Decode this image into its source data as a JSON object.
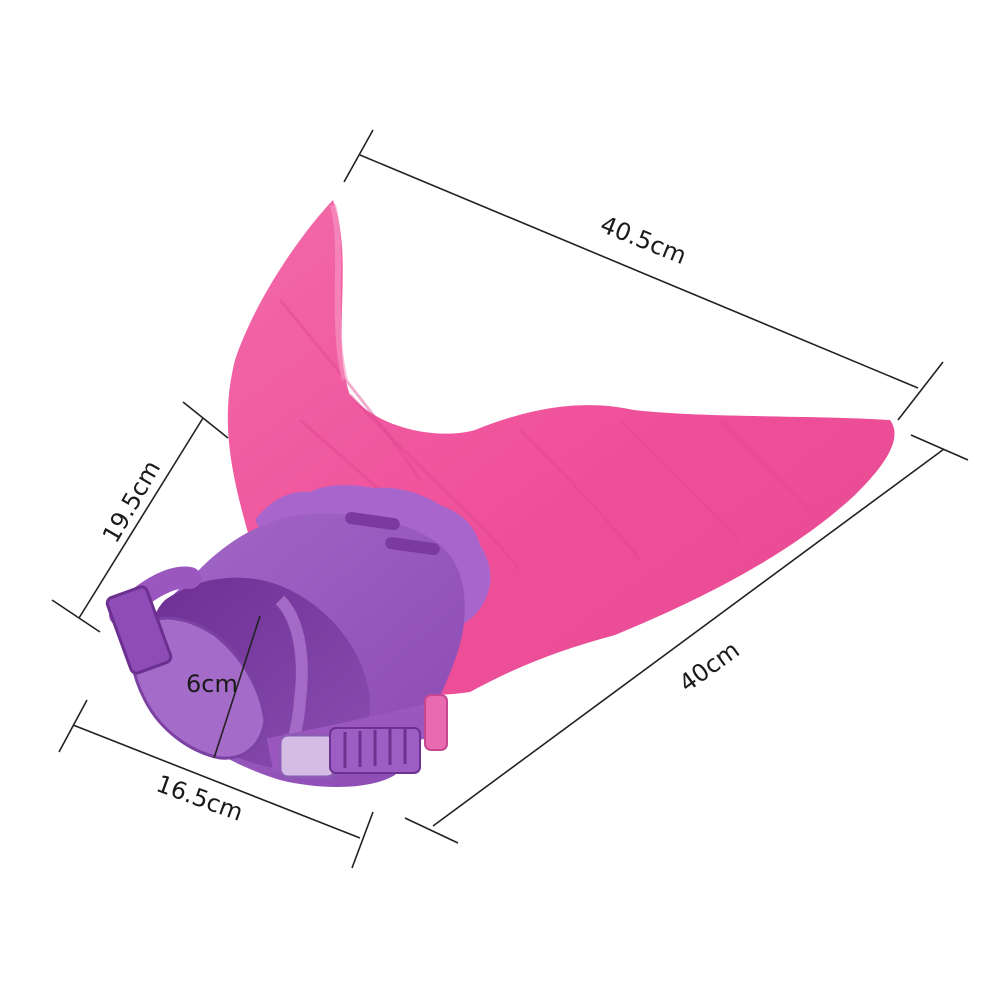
{
  "image": {
    "subject": "mermaid-fin",
    "background": "#ffffff",
    "colors": {
      "fin": "#f0519b",
      "fin_shadow": "#d93f86",
      "fin_highlight": "#f878b5",
      "foot_pocket": "#9c5bc1",
      "foot_pocket_dark": "#7b3fa1",
      "strap": "#9b57c0",
      "clip": "#e96fb1"
    }
  },
  "dimensions": {
    "length_top": "40.5cm",
    "length_side": "40cm",
    "height_left": "19.5cm",
    "width_bottom": "16.5cm",
    "opening": "6cm"
  }
}
